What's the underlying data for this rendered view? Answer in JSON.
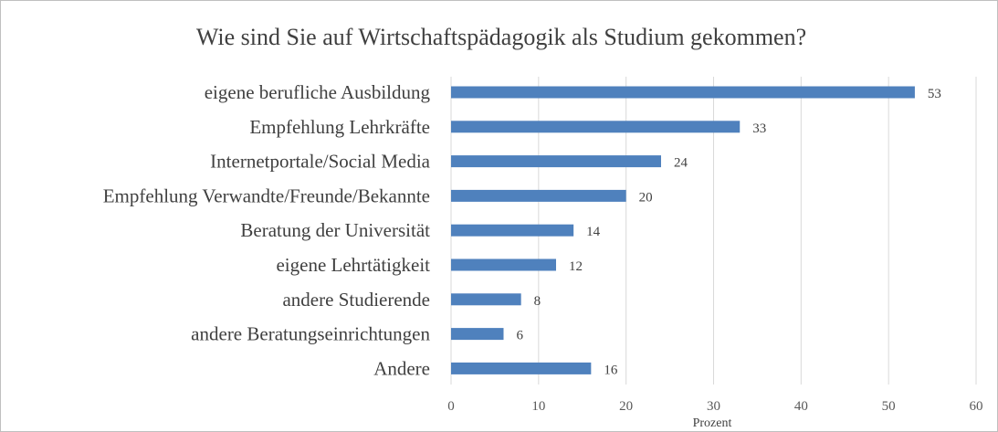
{
  "chart_data": {
    "type": "bar",
    "orientation": "horizontal",
    "title": "Wie sind Sie auf Wirtschaftspädagogik als Studium gekommen?",
    "xlabel": "Prozent",
    "ylabel": "",
    "categories": [
      "eigene berufliche Ausbildung",
      "Empfehlung Lehrkräfte",
      "Internetportale/Social Media",
      "Empfehlung Verwandte/Freunde/Bekannte",
      "Beratung der Universität",
      "eigene Lehrtätigkeit",
      "andere Studierende",
      "andere Beratungseinrichtungen",
      "Andere"
    ],
    "values": [
      53,
      33,
      24,
      20,
      14,
      12,
      8,
      6,
      16
    ],
    "data_labels": [
      "53",
      "33",
      "24",
      "20",
      "14",
      "12",
      "8",
      "6",
      "16"
    ],
    "xlim": [
      0,
      60
    ],
    "x_ticks": [
      0,
      10,
      20,
      30,
      40,
      50,
      60
    ],
    "x_tick_labels": [
      "0",
      "10",
      "20",
      "30",
      "40",
      "50",
      "60"
    ],
    "grid": "vertical",
    "legend": "none",
    "colors": {
      "bar": "#4f81bd",
      "grid": "#d9d9d9",
      "text": "#404040",
      "border": "#bfbfbf"
    }
  }
}
